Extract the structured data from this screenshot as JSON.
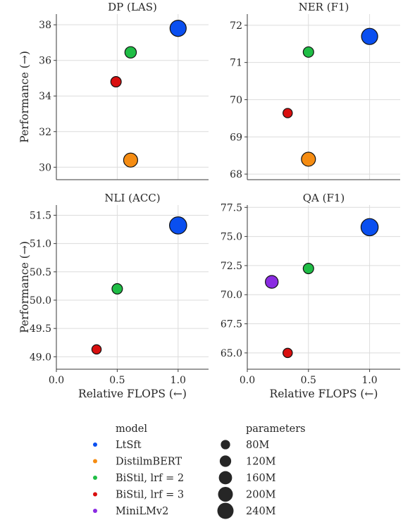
{
  "chart_data": {
    "type": "scatter",
    "ylabel": "Performance (→)",
    "xlabel": "Relative FLOPS (←)",
    "x_ticks": [
      "0.0",
      "0.5",
      "1.0"
    ],
    "xlim": [
      0.0,
      1.25
    ],
    "grid": true,
    "legend_placement": "bottom-center",
    "colors": {
      "LtSft": "#0a4ff0",
      "DistilmBERT": "#f58c12",
      "BiStil, lrf = 2": "#1fbd45",
      "BiStil, lrf = 3": "#d90f0f",
      "MiniLMv2": "#8a2be2"
    },
    "legend": {
      "model_title": "model",
      "models": [
        "LtSft",
        "DistilmBERT",
        "BiStil, lrf = 2",
        "BiStil, lrf = 3",
        "MiniLMv2"
      ],
      "parameters_title": "parameters",
      "parameters": [
        "80M",
        "120M",
        "160M",
        "200M",
        "240M"
      ],
      "parameter_values": [
        80,
        120,
        160,
        200,
        240
      ]
    },
    "panels": [
      {
        "title": "DP (LAS)",
        "ylim": [
          29.3,
          38.6
        ],
        "y_ticks": [
          "30",
          "32",
          "34",
          "36",
          "38"
        ],
        "y_tick_values": [
          30,
          32,
          34,
          36,
          38
        ],
        "points": [
          {
            "model": "LtSft",
            "x": 1.0,
            "y": 37.8,
            "params": 240
          },
          {
            "model": "BiStil, lrf = 2",
            "x": 0.61,
            "y": 36.45,
            "params": 120
          },
          {
            "model": "BiStil, lrf = 3",
            "x": 0.49,
            "y": 34.8,
            "params": 100
          },
          {
            "model": "DistilmBERT",
            "x": 0.61,
            "y": 30.4,
            "params": 180
          }
        ]
      },
      {
        "title": "NER (F1)",
        "ylim": [
          67.85,
          72.3
        ],
        "y_ticks": [
          "68",
          "69",
          "70",
          "71",
          "72"
        ],
        "y_tick_values": [
          68,
          69,
          70,
          71,
          72
        ],
        "points": [
          {
            "model": "LtSft",
            "x": 1.0,
            "y": 71.7,
            "params": 240
          },
          {
            "model": "BiStil, lrf = 2",
            "x": 0.5,
            "y": 71.28,
            "params": 100
          },
          {
            "model": "BiStil, lrf = 3",
            "x": 0.33,
            "y": 69.64,
            "params": 80
          },
          {
            "model": "DistilmBERT",
            "x": 0.5,
            "y": 68.4,
            "params": 180
          }
        ]
      },
      {
        "title": "NLI (ACC)",
        "ylim": [
          48.78,
          51.68
        ],
        "y_ticks": [
          "49.0",
          "49.5",
          "50.0",
          "50.5",
          "51.0",
          "51.5"
        ],
        "y_tick_values": [
          49.0,
          49.5,
          50.0,
          50.5,
          51.0,
          51.5
        ],
        "points": [
          {
            "model": "LtSft",
            "x": 1.0,
            "y": 51.32,
            "params": 270
          },
          {
            "model": "BiStil, lrf = 2",
            "x": 0.5,
            "y": 50.2,
            "params": 100
          },
          {
            "model": "BiStil, lrf = 3",
            "x": 0.33,
            "y": 49.13,
            "params": 80
          }
        ]
      },
      {
        "title": "QA (F1)",
        "ylim": [
          63.6,
          77.7
        ],
        "y_ticks": [
          "65.0",
          "67.5",
          "70.0",
          "72.5",
          "75.0",
          "77.5"
        ],
        "y_tick_values": [
          65.0,
          67.5,
          70.0,
          72.5,
          75.0,
          77.5
        ],
        "points": [
          {
            "model": "LtSft",
            "x": 1.0,
            "y": 75.8,
            "params": 270
          },
          {
            "model": "BiStil, lrf = 2",
            "x": 0.5,
            "y": 72.25,
            "params": 100
          },
          {
            "model": "MiniLMv2",
            "x": 0.2,
            "y": 71.1,
            "params": 150
          },
          {
            "model": "BiStil, lrf = 3",
            "x": 0.33,
            "y": 65.0,
            "params": 80
          }
        ]
      }
    ]
  }
}
